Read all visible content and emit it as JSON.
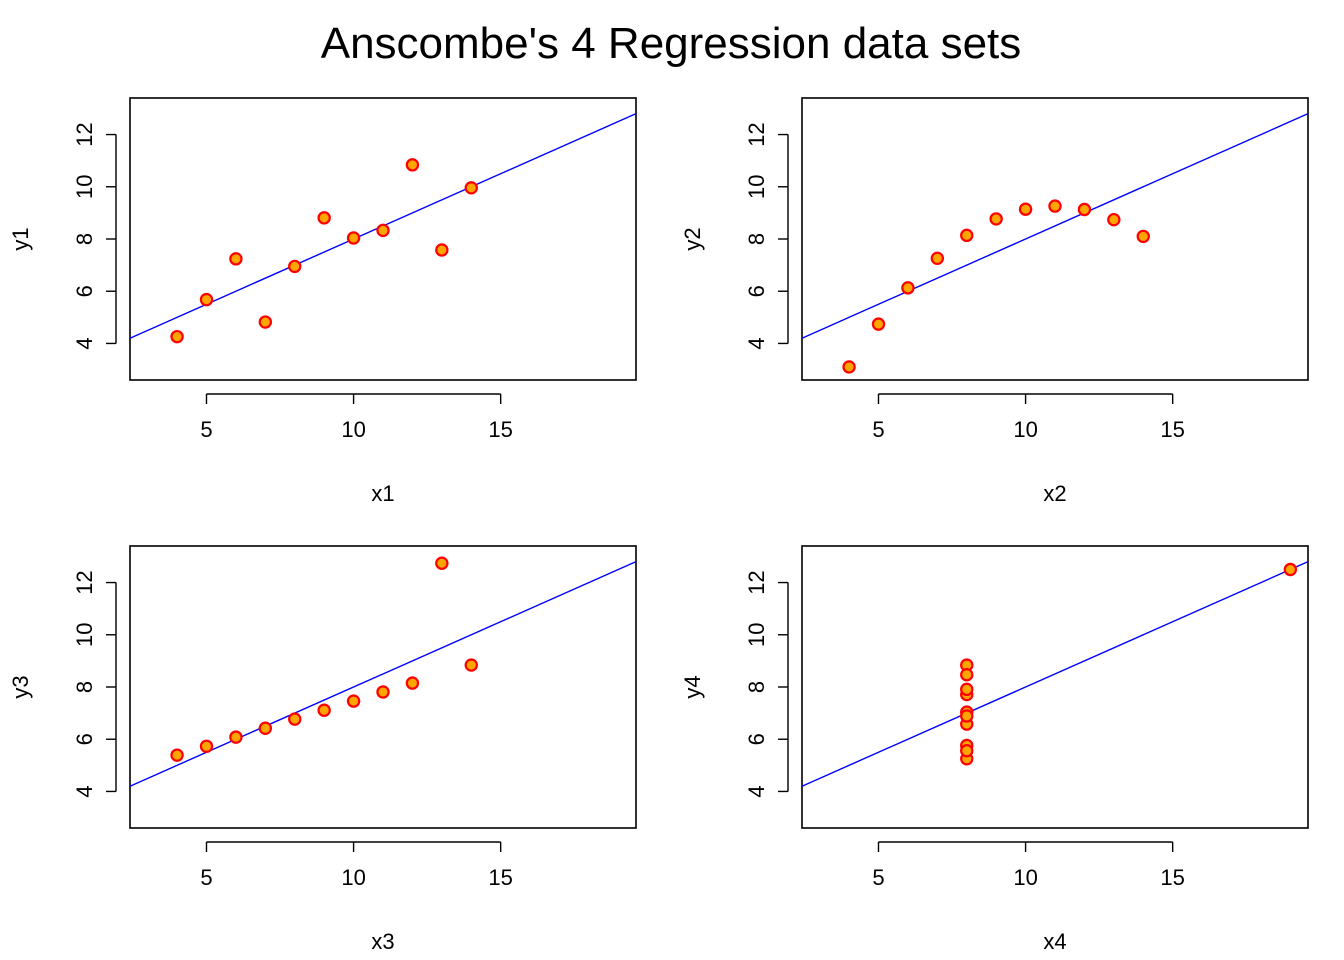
{
  "title": "Anscombe's 4 Regression data sets",
  "colors": {
    "point_fill": "#FFA500",
    "point_stroke": "#FF0000",
    "regression_line": "#0000FF",
    "axes": "#000000",
    "background": "#FFFFFF"
  },
  "chart_data": [
    {
      "type": "scatter",
      "xlabel": "x1",
      "ylabel": "y1",
      "xlim": [
        2.4,
        19.6
      ],
      "ylim": [
        2.6,
        13.4
      ],
      "xticks": [
        5,
        10,
        15
      ],
      "yticks": [
        4,
        6,
        8,
        10,
        12
      ],
      "grid": false,
      "x": [
        10,
        8,
        13,
        9,
        11,
        14,
        6,
        4,
        12,
        7,
        5
      ],
      "y": [
        8.04,
        6.95,
        7.58,
        8.81,
        8.33,
        9.96,
        7.24,
        4.26,
        10.84,
        4.82,
        5.68
      ],
      "regression": {
        "intercept": 3.0,
        "slope": 0.5
      }
    },
    {
      "type": "scatter",
      "xlabel": "x2",
      "ylabel": "y2",
      "xlim": [
        2.4,
        19.6
      ],
      "ylim": [
        2.6,
        13.4
      ],
      "xticks": [
        5,
        10,
        15
      ],
      "yticks": [
        4,
        6,
        8,
        10,
        12
      ],
      "grid": false,
      "x": [
        10,
        8,
        13,
        9,
        11,
        14,
        6,
        4,
        12,
        7,
        5
      ],
      "y": [
        9.14,
        8.14,
        8.74,
        8.77,
        9.26,
        8.1,
        6.13,
        3.1,
        9.13,
        7.26,
        4.74
      ],
      "regression": {
        "intercept": 3.0,
        "slope": 0.5
      }
    },
    {
      "type": "scatter",
      "xlabel": "x3",
      "ylabel": "y3",
      "xlim": [
        2.4,
        19.6
      ],
      "ylim": [
        2.6,
        13.4
      ],
      "xticks": [
        5,
        10,
        15
      ],
      "yticks": [
        4,
        6,
        8,
        10,
        12
      ],
      "grid": false,
      "x": [
        10,
        8,
        13,
        9,
        11,
        14,
        6,
        4,
        12,
        7,
        5
      ],
      "y": [
        7.46,
        6.77,
        12.74,
        7.11,
        7.81,
        8.84,
        6.08,
        5.39,
        8.15,
        6.42,
        5.73
      ],
      "regression": {
        "intercept": 3.0,
        "slope": 0.5
      }
    },
    {
      "type": "scatter",
      "xlabel": "x4",
      "ylabel": "y4",
      "xlim": [
        2.4,
        19.6
      ],
      "ylim": [
        2.6,
        13.4
      ],
      "xticks": [
        5,
        10,
        15
      ],
      "yticks": [
        4,
        6,
        8,
        10,
        12
      ],
      "grid": false,
      "x": [
        8,
        8,
        8,
        8,
        8,
        8,
        8,
        19,
        8,
        8,
        8
      ],
      "y": [
        6.58,
        5.76,
        7.71,
        8.84,
        8.47,
        7.04,
        5.25,
        12.5,
        5.56,
        7.91,
        6.89
      ],
      "regression": {
        "intercept": 3.0,
        "slope": 0.5
      }
    }
  ]
}
